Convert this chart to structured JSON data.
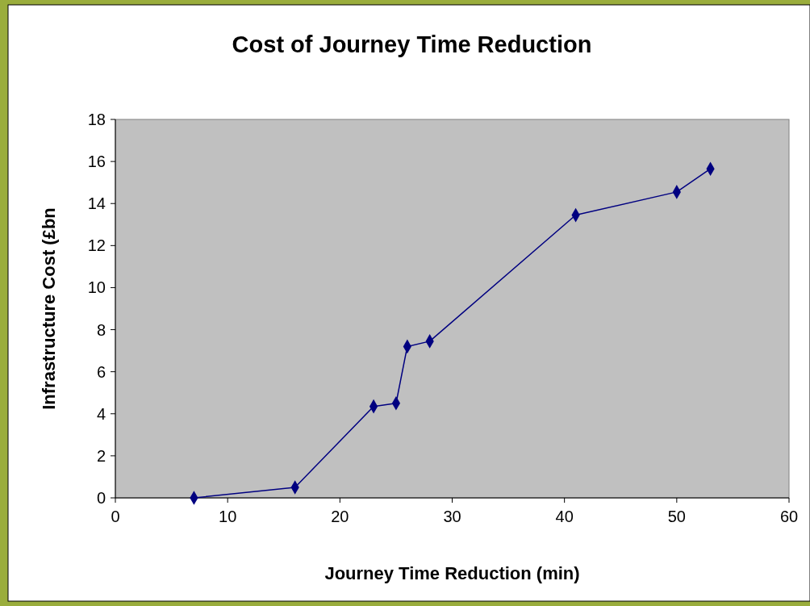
{
  "chart_data": {
    "type": "line",
    "title": "Cost of Journey Time Reduction",
    "xlabel": "Journey Time Reduction (min)",
    "ylabel": "Infrastructure Cost (£bn",
    "x": [
      7,
      16,
      23,
      25,
      26,
      28,
      41,
      50,
      53
    ],
    "series": [
      {
        "color": "#000080",
        "values": [
          0,
          0.5,
          4.35,
          4.5,
          7.2,
          7.45,
          13.45,
          14.55,
          15.65
        ]
      }
    ],
    "xlim": [
      0,
      60
    ],
    "ylim": [
      0,
      18
    ],
    "xticks": [
      0,
      10,
      20,
      30,
      40,
      50,
      60
    ],
    "yticks": [
      0,
      2,
      4,
      6,
      8,
      10,
      12,
      14,
      16,
      18
    ],
    "marker": "diamond"
  }
}
